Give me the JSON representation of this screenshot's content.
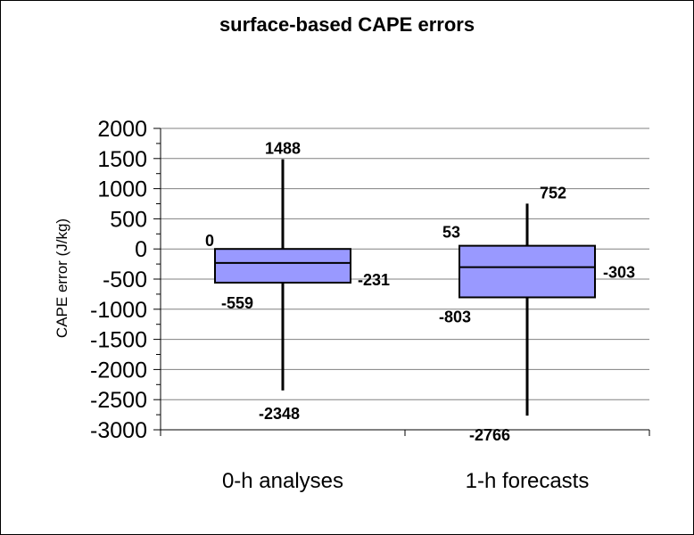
{
  "chart_data": {
    "type": "boxplot",
    "title": "surface-based CAPE errors",
    "ylabel": "CAPE error (J/kg)",
    "ylim": [
      -3000,
      2000
    ],
    "ytick_step": 500,
    "grid": true,
    "box_color": "#9999ff",
    "categories": [
      "0-h analyses",
      "1-h forecasts"
    ],
    "boxes": [
      {
        "category": "0-h analyses",
        "max": 1488,
        "q3": 0,
        "median": -231,
        "q1": -559,
        "min": -2348
      },
      {
        "category": "1-h forecasts",
        "max": 752,
        "q3": 53,
        "median": -303,
        "q1": -803,
        "min": -2766
      }
    ],
    "labels": [
      {
        "max": "1488",
        "q3": "0",
        "median": "-231",
        "q1": "-559",
        "min": "-2348"
      },
      {
        "max": "752",
        "q3": "53",
        "median": "-303",
        "q1": "-803",
        "min": "-2766"
      }
    ]
  }
}
